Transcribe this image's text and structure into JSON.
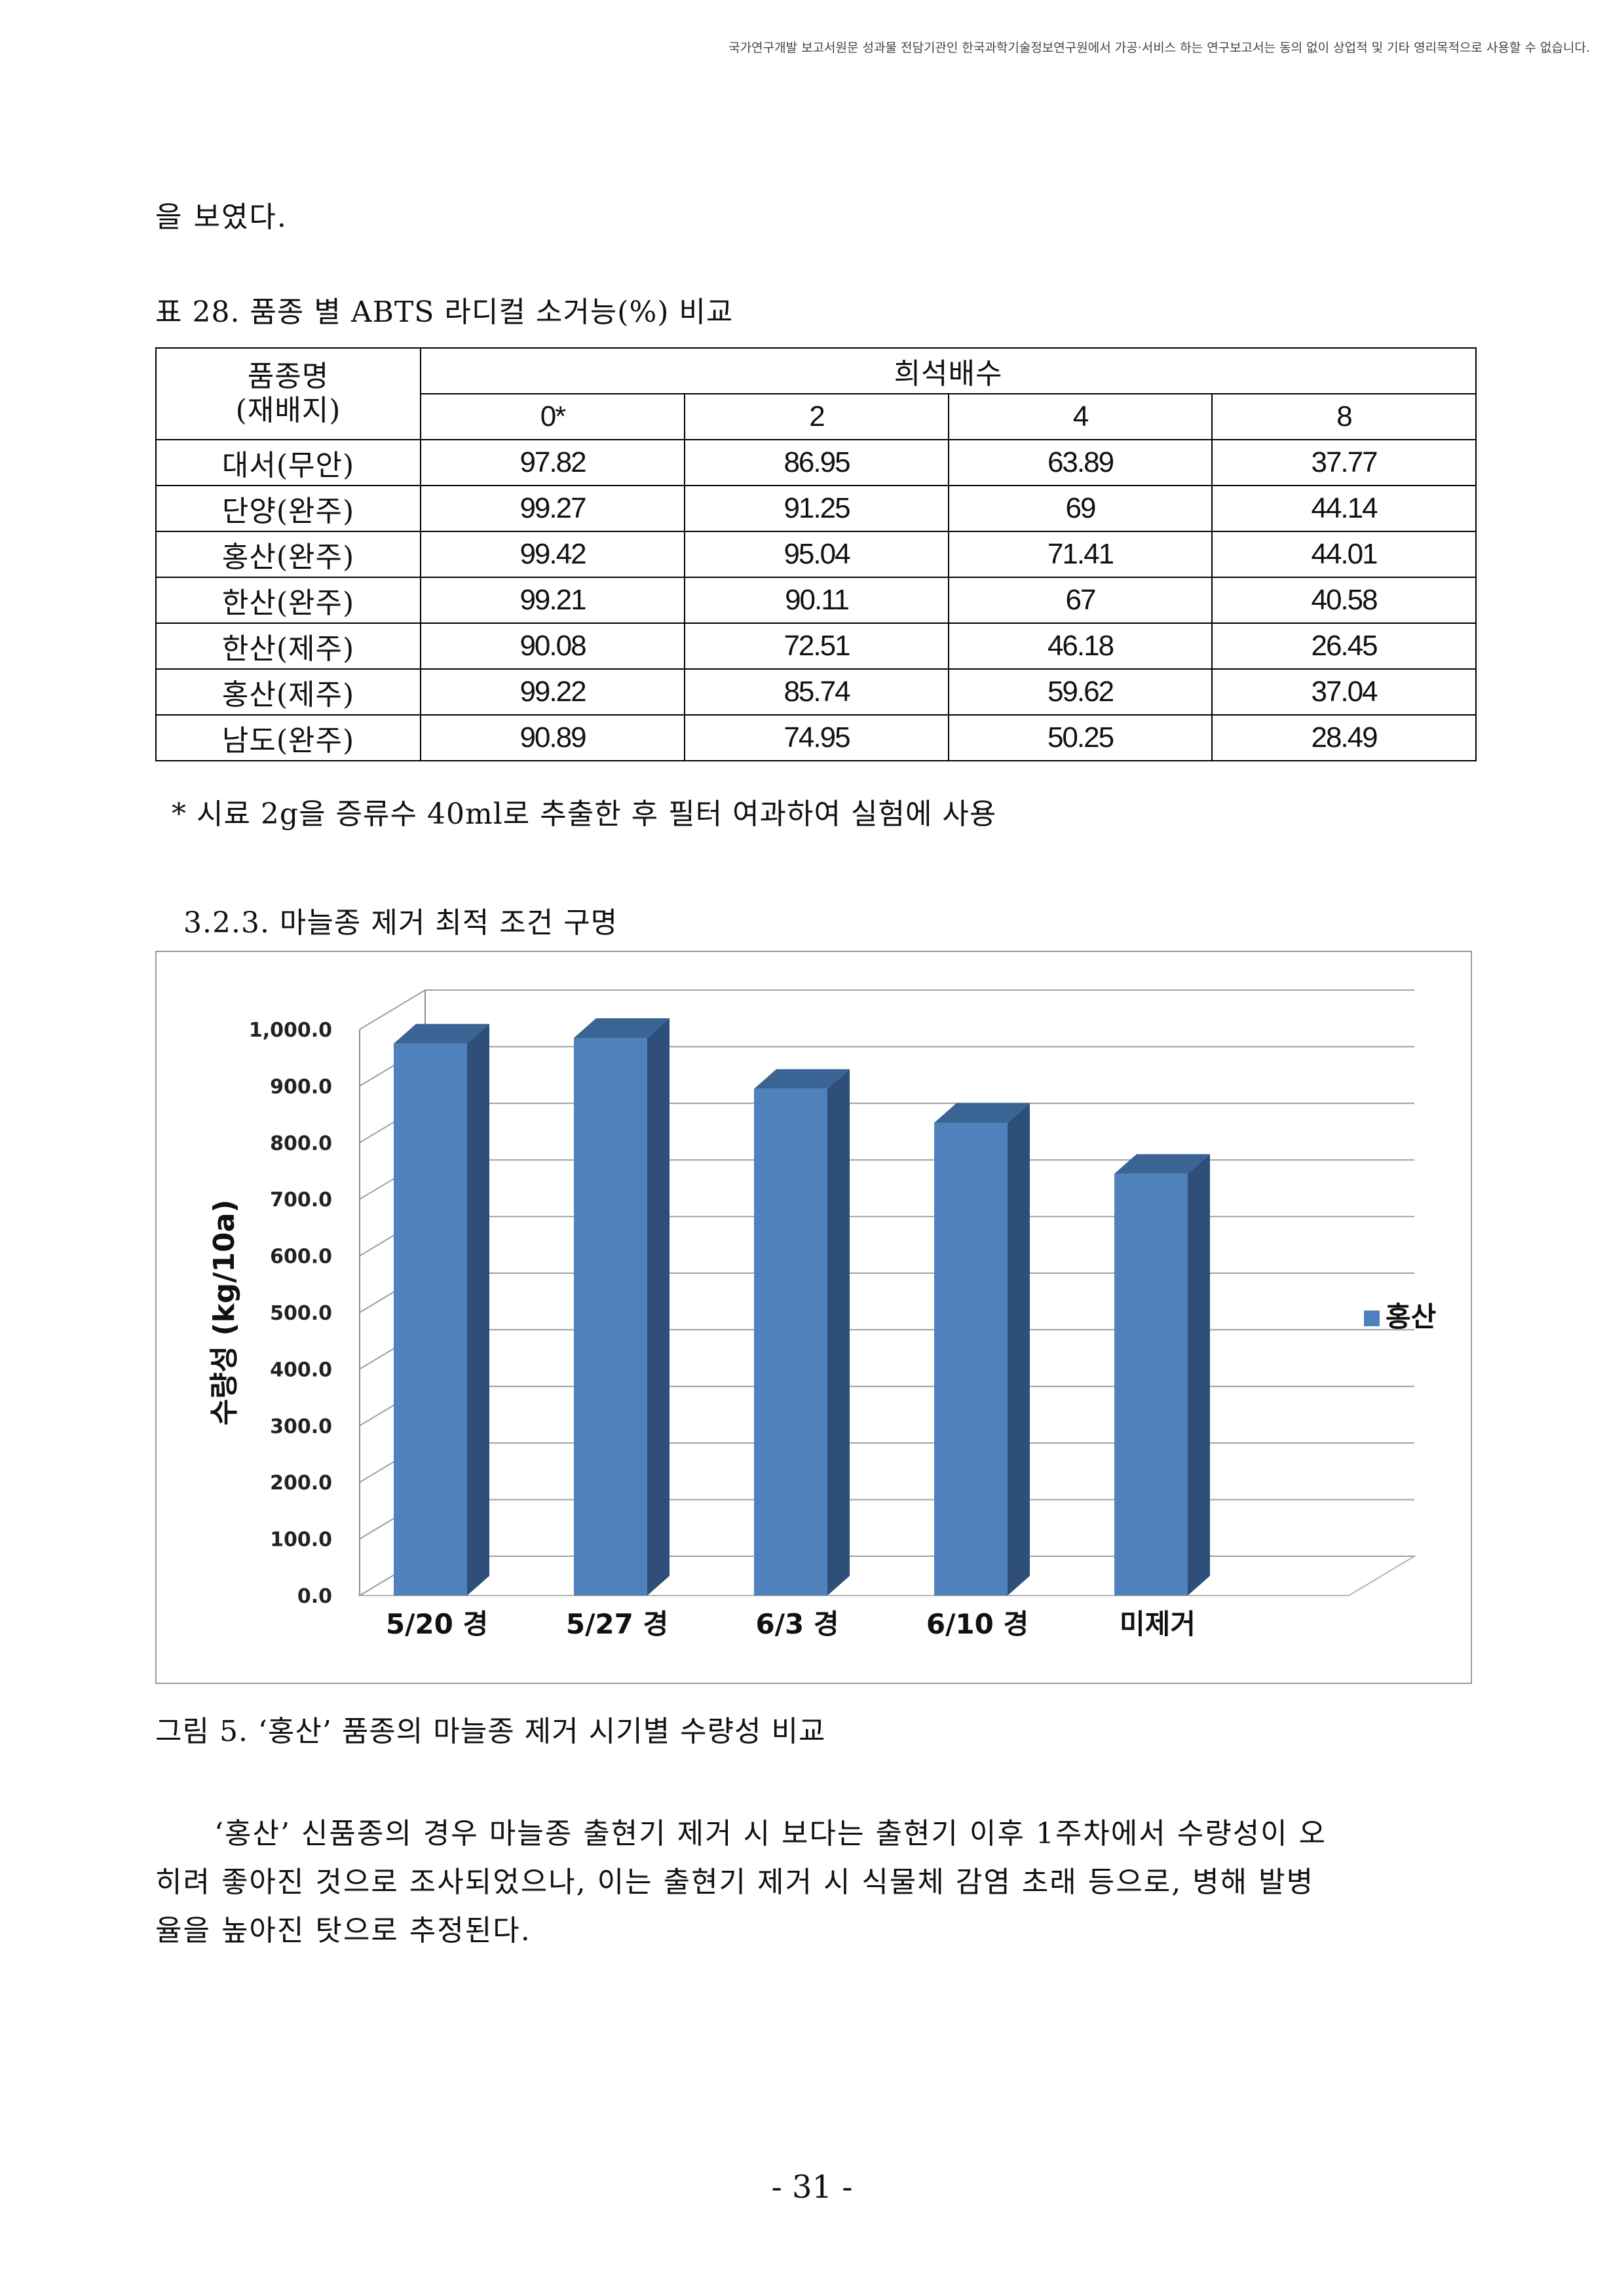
{
  "header_notice": "국가연구개발 보고서원문 성과물 전담기관인 한국과학기술정보연구원에서 가공·서비스 하는 연구보고서는 동의 없이 상업적 및 기타 영리목적으로 사용할 수 없습니다.",
  "intro_line": "을 보였다.",
  "table_caption": "표 28. 품종 별 ABTS 라디컬 소거능(%) 비교",
  "table": {
    "col_header_name": "품종명\n(재배지)",
    "dilution_header": "희석배수",
    "dilutions": [
      "0*",
      "2",
      "4",
      "8"
    ],
    "rows": [
      {
        "name": "대서(무안)",
        "values": [
          "97.82",
          "86.95",
          "63.89",
          "37.77"
        ]
      },
      {
        "name": "단양(완주)",
        "values": [
          "99.27",
          "91.25",
          "69",
          "44.14"
        ]
      },
      {
        "name": "홍산(완주)",
        "values": [
          "99.42",
          "95.04",
          "71.41",
          "44.01"
        ]
      },
      {
        "name": "한산(완주)",
        "values": [
          "99.21",
          "90.11",
          "67",
          "40.58"
        ]
      },
      {
        "name": "한산(제주)",
        "values": [
          "90.08",
          "72.51",
          "46.18",
          "26.45"
        ]
      },
      {
        "name": "홍산(제주)",
        "values": [
          "99.22",
          "85.74",
          "59.62",
          "37.04"
        ]
      },
      {
        "name": "남도(완주)",
        "values": [
          "90.89",
          "74.95",
          "50.25",
          "28.49"
        ]
      }
    ]
  },
  "table_footnote": "* 시료 2g을 증류수 40ml로 추출한 후 필터 여과하여 실험에 사용",
  "section_heading": "3.2.3. 마늘종 제거 최적 조건 구명",
  "chart_data": {
    "type": "bar",
    "title": "",
    "categories": [
      "5/20 경",
      "5/27 경",
      "6/3 경",
      "6/10 경",
      "미제거"
    ],
    "series": [
      {
        "name": "홍산",
        "values": [
          975,
          985,
          895,
          835,
          745
        ]
      }
    ],
    "xlabel": "",
    "ylabel": "수량성 (kg/10a)",
    "ylim": [
      0,
      1000
    ],
    "yticks": [
      "0.0",
      "100.0",
      "200.0",
      "300.0",
      "400.0",
      "500.0",
      "600.0",
      "700.0",
      "800.0",
      "900.0",
      "1,000.0"
    ],
    "grid": true,
    "legend": "right",
    "bar_color": "#4f81bd"
  },
  "figure_caption": "그림 5. ‘홍산’ 품종의 마늘종 제거 시기별 수량성 비교",
  "paragraph_lines": [
    "‘홍산’ 신품종의 경우 마늘종 출현기 제거 시 보다는 출현기 이후 1주차에서 수량성이 오",
    "히려 좋아진 것으로 조사되었으나, 이는 출현기 제거 시 식물체 감염 초래 등으로, 병해 발병",
    "율을 높아진 탓으로 추정된다."
  ],
  "page_number": "- 31 -"
}
